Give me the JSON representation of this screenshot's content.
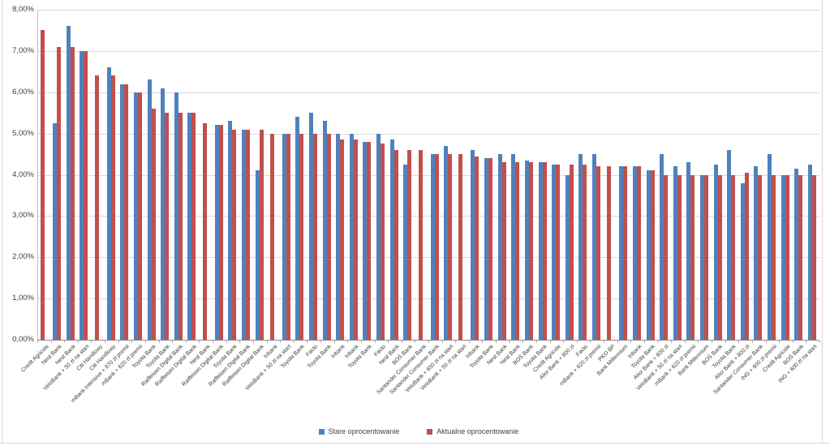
{
  "chart_data": {
    "type": "bar",
    "title": "",
    "y_axis": {
      "min": 0,
      "max": 8,
      "step": 1,
      "tick_labels": [
        "8,00%",
        "7,00%",
        "6,00%",
        "5,00%",
        "4,00%",
        "3,00%",
        "2,00%",
        "1,00%",
        "0,00%"
      ],
      "grid": true
    },
    "legend_position": "bottom",
    "categories": [
      "Credit Agricole",
      "Nest Bank",
      "Nest Bank",
      "VeloBank + 50 zł na start",
      "Citi Handlowy",
      "Citi Handlowy",
      "mBank Intensive + 870 zł premii",
      "mBank + 620 zł premii",
      "Toyota Bank",
      "Toyota Bank",
      "Raiffeisen Digital Bank",
      "Raiffeisen Digital Bank",
      "Nest Bank",
      "Raiffeisen Digital Bank",
      "Toyota Bank",
      "Raiffeisen Digital Bank",
      "Raiffeisen Digital Bank",
      "Inbank",
      "VeloBank + 50 zł na start",
      "Toyota Bank",
      "Facto",
      "Toyota Bank",
      "Inbank",
      "Inbank",
      "Toyota Bank",
      "Facto",
      "Nest Bank",
      "BOŚ Bank",
      "Santander Consumer Bank",
      "Santander Consumer Bank",
      "VeloBank + 650 zł na start",
      "VeloBank + 50 zł na start",
      "Inbank",
      "Toyota Bank",
      "Nest Bank",
      "Nest Bank",
      "BOŚ Bank",
      "Toyota Bank",
      "Credit Agricole",
      "Alior Bank + 800 zł",
      "Facto",
      "mBank + 620 zł premii",
      "PKO BP",
      "Bank Millennium",
      "Inbank",
      "Toyota Bank",
      "Alior Bank + 600 zł",
      "VeloBank + 50 zł na start",
      "mBank + 620 zł premii",
      "Bank Millennium",
      "BOŚ Bank",
      "Toyota Bank",
      "Alior Bank + 800 zł",
      "Santander Consumer Bank",
      "ING + 600 zł premii",
      "Credit Agricole",
      "BOŚ Bank",
      "ING + 600 zł na start"
    ],
    "series": [
      {
        "name": "Stare oprocentowanie",
        "color": "#4f81bd",
        "values": [
          null,
          5.25,
          7.6,
          7.0,
          null,
          6.6,
          6.2,
          6.0,
          6.3,
          6.1,
          6.0,
          5.5,
          null,
          5.2,
          5.3,
          5.1,
          4.1,
          null,
          5.0,
          5.4,
          5.5,
          5.3,
          5.0,
          5.0,
          4.8,
          5.0,
          4.85,
          4.25,
          null,
          4.5,
          4.7,
          null,
          4.6,
          4.4,
          4.5,
          4.5,
          4.35,
          4.3,
          4.25,
          4.0,
          4.5,
          4.5,
          null,
          4.2,
          4.2,
          4.1,
          4.5,
          4.2,
          4.3,
          4.0,
          4.25,
          4.6,
          3.8,
          4.2,
          4.5,
          4.0,
          4.15,
          4.25
        ]
      },
      {
        "name": "Aktualne oprocentowanie",
        "color": "#c0504d",
        "values": [
          7.5,
          7.1,
          7.1,
          7.0,
          6.4,
          6.4,
          6.2,
          6.0,
          5.6,
          5.5,
          5.5,
          5.5,
          5.25,
          5.2,
          5.1,
          5.1,
          5.1,
          5.0,
          5.0,
          5.0,
          5.0,
          5.0,
          4.85,
          4.85,
          4.8,
          4.75,
          4.6,
          4.6,
          4.6,
          4.5,
          4.5,
          4.5,
          4.45,
          4.4,
          4.3,
          4.3,
          4.3,
          4.3,
          4.25,
          4.25,
          4.25,
          4.2,
          4.2,
          4.2,
          4.2,
          4.1,
          4.0,
          4.0,
          4.0,
          4.0,
          4.0,
          4.0,
          4.05,
          4.0,
          4.0,
          4.0,
          4.0,
          4.0
        ]
      }
    ]
  }
}
